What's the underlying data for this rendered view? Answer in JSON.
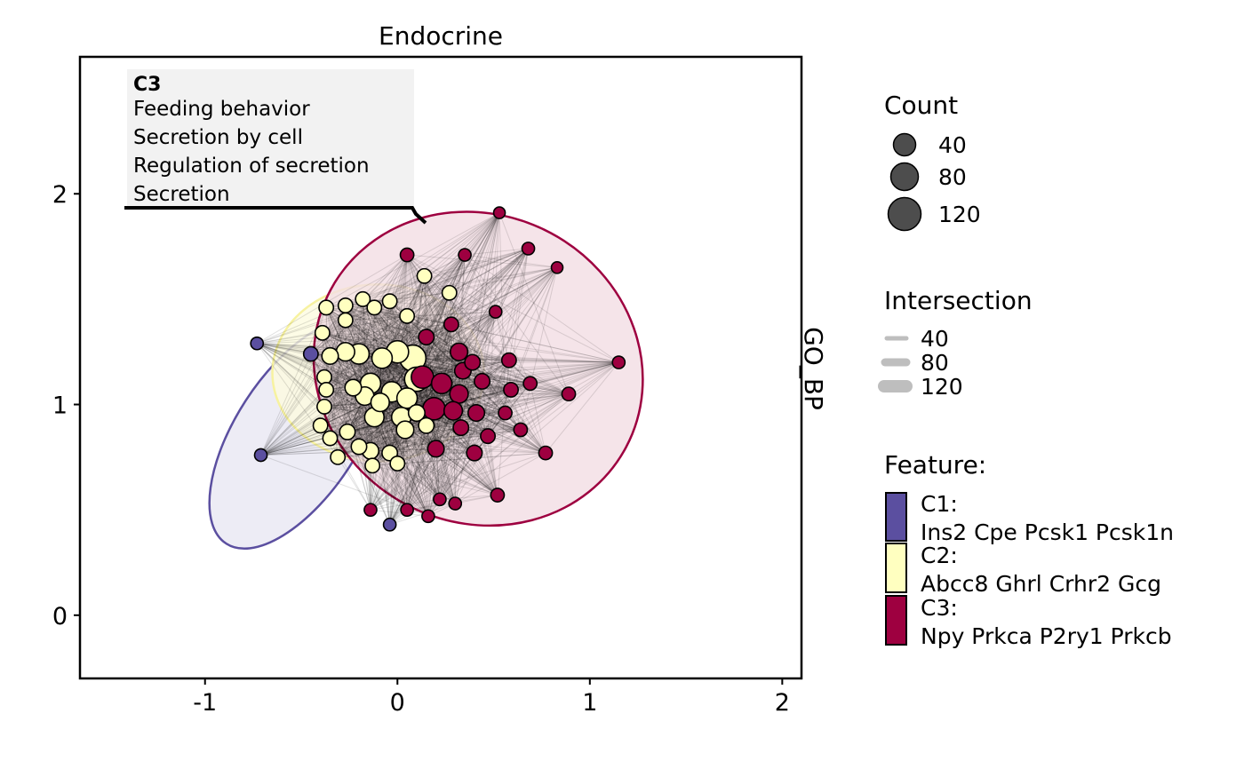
{
  "chart_data": {
    "type": "scatter",
    "title": "Endocrine",
    "facet_label": "GO_BP",
    "xlim": [
      -1.65,
      2.1
    ],
    "ylim": [
      -0.3,
      2.65
    ],
    "x_ticks": [
      -1,
      0,
      1,
      2
    ],
    "y_ticks": [
      0,
      1,
      2
    ],
    "grid": false,
    "legend_position": "right",
    "annotation": {
      "heading": "C3",
      "lines": [
        "Feeding behavior",
        "Secretion by cell",
        "Regulation of secretion",
        "Secretion"
      ],
      "anchor_x": 0.13,
      "anchor_y": 1.86
    },
    "clusters": [
      {
        "id": "C1",
        "color": "#5b4fa0",
        "fill": "#e9e7f3",
        "ellipse": {
          "cx": -0.52,
          "cy": 0.86,
          "rx": 0.32,
          "ry": 0.62,
          "angle": 33
        }
      },
      {
        "id": "C2",
        "color": "#f7f2a0",
        "fill": "#fdfbe0",
        "ellipse": {
          "cx": -0.1,
          "cy": 1.15,
          "rx": 0.55,
          "ry": 0.42,
          "angle": 0
        }
      },
      {
        "id": "C3",
        "color": "#9e0040",
        "fill": "#f2dde4",
        "ellipse": {
          "cx": 0.42,
          "cy": 1.17,
          "rx": 0.87,
          "ry": 0.73,
          "angle": 28
        }
      }
    ],
    "series": [
      {
        "name": "C1",
        "color": "#5b4fa0",
        "points": [
          [
            -0.73,
            1.29,
            20
          ],
          [
            -0.71,
            0.76,
            20
          ],
          [
            -0.04,
            0.43,
            20
          ],
          [
            -0.45,
            1.24,
            30
          ]
        ]
      },
      {
        "name": "C2",
        "color": "#ffffc0",
        "points": [
          [
            -0.39,
            1.34,
            30
          ],
          [
            -0.37,
            1.46,
            30
          ],
          [
            -0.27,
            1.4,
            30
          ],
          [
            -0.27,
            1.47,
            30
          ],
          [
            -0.18,
            1.5,
            30
          ],
          [
            -0.12,
            1.46,
            30
          ],
          [
            -0.04,
            1.49,
            30
          ],
          [
            0.05,
            1.42,
            30
          ],
          [
            0.14,
            1.61,
            30
          ],
          [
            0.27,
            1.53,
            30
          ],
          [
            -0.35,
            1.23,
            40
          ],
          [
            -0.27,
            1.25,
            50
          ],
          [
            -0.2,
            1.24,
            60
          ],
          [
            -0.08,
            1.22,
            60
          ],
          [
            0.0,
            1.25,
            70
          ],
          [
            0.08,
            1.22,
            90
          ],
          [
            -0.38,
            1.13,
            30
          ],
          [
            -0.37,
            1.07,
            30
          ],
          [
            -0.38,
            0.99,
            30
          ],
          [
            -0.4,
            0.9,
            30
          ],
          [
            -0.35,
            0.84,
            30
          ],
          [
            -0.31,
            0.75,
            30
          ],
          [
            -0.26,
            0.87,
            35
          ],
          [
            -0.2,
            0.8,
            35
          ],
          [
            -0.14,
            0.78,
            40
          ],
          [
            -0.13,
            0.71,
            30
          ],
          [
            -0.04,
            0.77,
            35
          ],
          [
            0.0,
            0.72,
            30
          ],
          [
            -0.23,
            1.08,
            40
          ],
          [
            -0.17,
            1.04,
            50
          ],
          [
            -0.09,
            1.01,
            50
          ],
          [
            -0.12,
            0.94,
            55
          ],
          [
            -0.03,
            1.06,
            60
          ],
          [
            0.02,
            0.94,
            55
          ],
          [
            0.05,
            1.03,
            60
          ],
          [
            0.1,
            1.12,
            80
          ],
          [
            0.04,
            0.88,
            45
          ],
          [
            0.1,
            0.96,
            40
          ],
          [
            0.15,
            0.9,
            35
          ],
          [
            -0.14,
            1.1,
            60
          ]
        ]
      },
      {
        "name": "C3",
        "color": "#9e0040",
        "points": [
          [
            0.53,
            1.91,
            15
          ],
          [
            0.68,
            1.74,
            20
          ],
          [
            0.83,
            1.65,
            15
          ],
          [
            0.35,
            1.71,
            20
          ],
          [
            0.05,
            1.71,
            25
          ],
          [
            0.51,
            1.44,
            20
          ],
          [
            1.15,
            1.2,
            20
          ],
          [
            0.89,
            1.05,
            25
          ],
          [
            0.69,
            1.1,
            25
          ],
          [
            0.58,
            1.21,
            30
          ],
          [
            0.59,
            1.07,
            30
          ],
          [
            0.56,
            0.96,
            25
          ],
          [
            0.64,
            0.88,
            25
          ],
          [
            0.77,
            0.77,
            25
          ],
          [
            0.47,
            0.85,
            30
          ],
          [
            0.4,
            0.77,
            35
          ],
          [
            0.33,
            0.89,
            35
          ],
          [
            0.2,
            0.79,
            40
          ],
          [
            0.52,
            0.57,
            25
          ],
          [
            0.3,
            0.53,
            20
          ],
          [
            0.22,
            0.55,
            20
          ],
          [
            0.16,
            0.47,
            20
          ],
          [
            0.05,
            0.5,
            20
          ],
          [
            -0.14,
            0.5,
            20
          ],
          [
            0.15,
            1.32,
            35
          ],
          [
            0.28,
            1.38,
            30
          ],
          [
            0.32,
            1.25,
            45
          ],
          [
            0.39,
            1.2,
            35
          ],
          [
            0.34,
            1.16,
            40
          ],
          [
            0.44,
            1.11,
            35
          ],
          [
            0.32,
            1.05,
            50
          ],
          [
            0.41,
            0.96,
            40
          ],
          [
            0.23,
            1.1,
            60
          ],
          [
            0.19,
            0.98,
            70
          ],
          [
            0.29,
            0.97,
            50
          ],
          [
            0.13,
            1.13,
            70
          ]
        ]
      }
    ]
  },
  "legend": {
    "count": {
      "title": "Count",
      "items": [
        "40",
        "80",
        "120"
      ],
      "values": [
        40,
        80,
        120
      ]
    },
    "intersection": {
      "title": "Intersection",
      "items": [
        "40",
        "80",
        "120"
      ],
      "values": [
        40,
        80,
        120
      ]
    },
    "feature": {
      "title": "Feature:",
      "items": [
        {
          "name": "C1:",
          "genes": "Ins2 Cpe Pcsk1 Pcsk1n",
          "color": "#5b4fa0"
        },
        {
          "name": "C2:",
          "genes": "Abcc8 Ghrl Crhr2 Gcg",
          "color": "#ffffc0"
        },
        {
          "name": "C3:",
          "genes": "Npy Prkca P2ry1 Prkcb",
          "color": "#9e0040"
        }
      ]
    }
  }
}
